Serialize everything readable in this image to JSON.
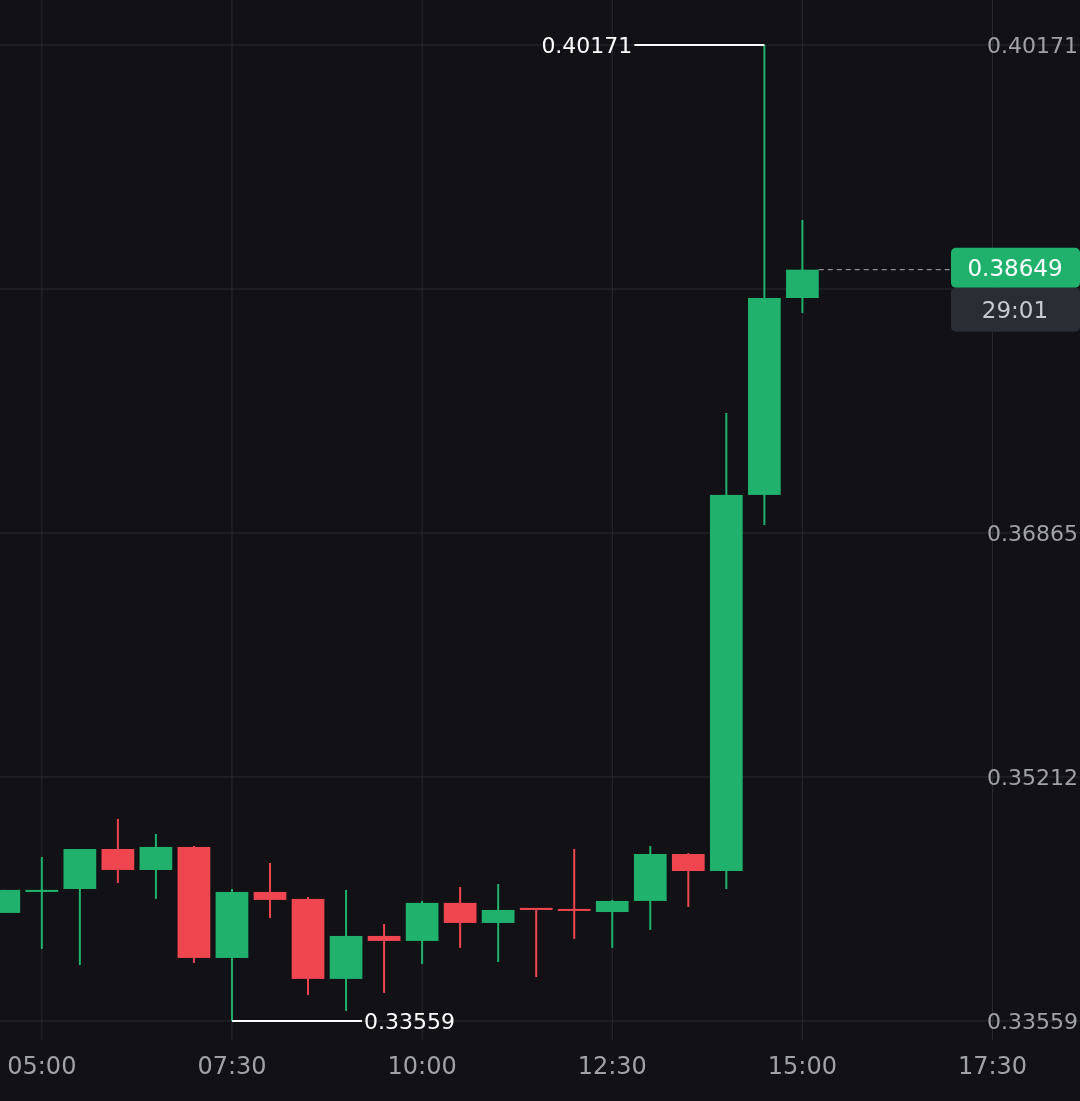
{
  "chart_data": {
    "type": "candlestick",
    "x": [
      4.5,
      5,
      5.5,
      6,
      6.5,
      7,
      7.5,
      8,
      8.5,
      9,
      9.5,
      10,
      10.5,
      11,
      11.5,
      12,
      12.5,
      13,
      13.5,
      14,
      14.5,
      15
    ],
    "ohlc": [
      [
        0.34291,
        0.34447,
        0.34291,
        0.34447
      ],
      [
        0.34433,
        0.3467,
        0.34047,
        0.34447
      ],
      [
        0.34453,
        0.34724,
        0.33938,
        0.34724
      ],
      [
        0.34724,
        0.34928,
        0.34494,
        0.34582
      ],
      [
        0.34582,
        0.34826,
        0.34386,
        0.34738
      ],
      [
        0.34738,
        0.34745,
        0.33952,
        0.33986
      ],
      [
        0.33986,
        0.34453,
        0.33559,
        0.34433
      ],
      [
        0.34433,
        0.34629,
        0.34257,
        0.34379
      ],
      [
        0.34386,
        0.34399,
        0.33735,
        0.33844
      ],
      [
        0.33844,
        0.34447,
        0.33627,
        0.34135
      ],
      [
        0.34135,
        0.34216,
        0.33749,
        0.34101
      ],
      [
        0.34101,
        0.34372,
        0.33945,
        0.34359
      ],
      [
        0.34359,
        0.34467,
        0.34054,
        0.34223
      ],
      [
        0.34223,
        0.34487,
        0.33959,
        0.34311
      ],
      [
        0.34325,
        0.34325,
        0.33857,
        0.34311
      ],
      [
        0.34318,
        0.34724,
        0.34115,
        0.34311
      ],
      [
        0.34297,
        0.34379,
        0.34054,
        0.34372
      ],
      [
        0.34372,
        0.34745,
        0.34176,
        0.3469
      ],
      [
        0.3469,
        0.34697,
        0.34331,
        0.34575
      ],
      [
        0.34575,
        0.37678,
        0.34453,
        0.37123
      ],
      [
        0.37123,
        0.40171,
        0.36919,
        0.38457
      ],
      [
        0.38457,
        0.38986,
        0.38356,
        0.38649
      ]
    ],
    "colors": [
      "#20b26c",
      "#20b26c",
      "#20b26c",
      "#f0464f",
      "#20b26c",
      "#f0464f",
      "#20b26c",
      "#f0464f",
      "#f0464f",
      "#20b26c",
      "#f0464f",
      "#20b26c",
      "#f0464f",
      "#20b26c",
      "#f0464f",
      "#f0464f",
      "#20b26c",
      "#20b26c",
      "#f0464f",
      "#20b26c",
      "#20b26c",
      "#20b26c"
    ],
    "xlim": [
      4.45,
      18.65
    ],
    "xticks": [
      {
        "value": 5,
        "label": "05:00"
      },
      {
        "value": 7.5,
        "label": "07:30"
      },
      {
        "value": 10,
        "label": "10:00"
      },
      {
        "value": 12.5,
        "label": "12:30"
      },
      {
        "value": 15,
        "label": "15:00"
      },
      {
        "value": 17.5,
        "label": "17:30"
      }
    ],
    "ylim": [
      0.3343,
      0.40476
    ],
    "yticks": [
      0.33559,
      0.35212,
      0.36865,
      {
        "value": 0.38518,
        "label": null
      },
      0.40171
    ],
    "grid": true,
    "ref_lines": [
      {
        "axis": "y",
        "value": 0.38649,
        "label": "0.38649",
        "color": "#8a8c92",
        "line_style": "dashed"
      }
    ],
    "annotations": [
      {
        "text": "0.40171",
        "x": 14.5,
        "y": 0.40171
      },
      {
        "text": "0.33559",
        "x": 7.5,
        "y": 0.33559
      },
      "29:01"
    ]
  }
}
